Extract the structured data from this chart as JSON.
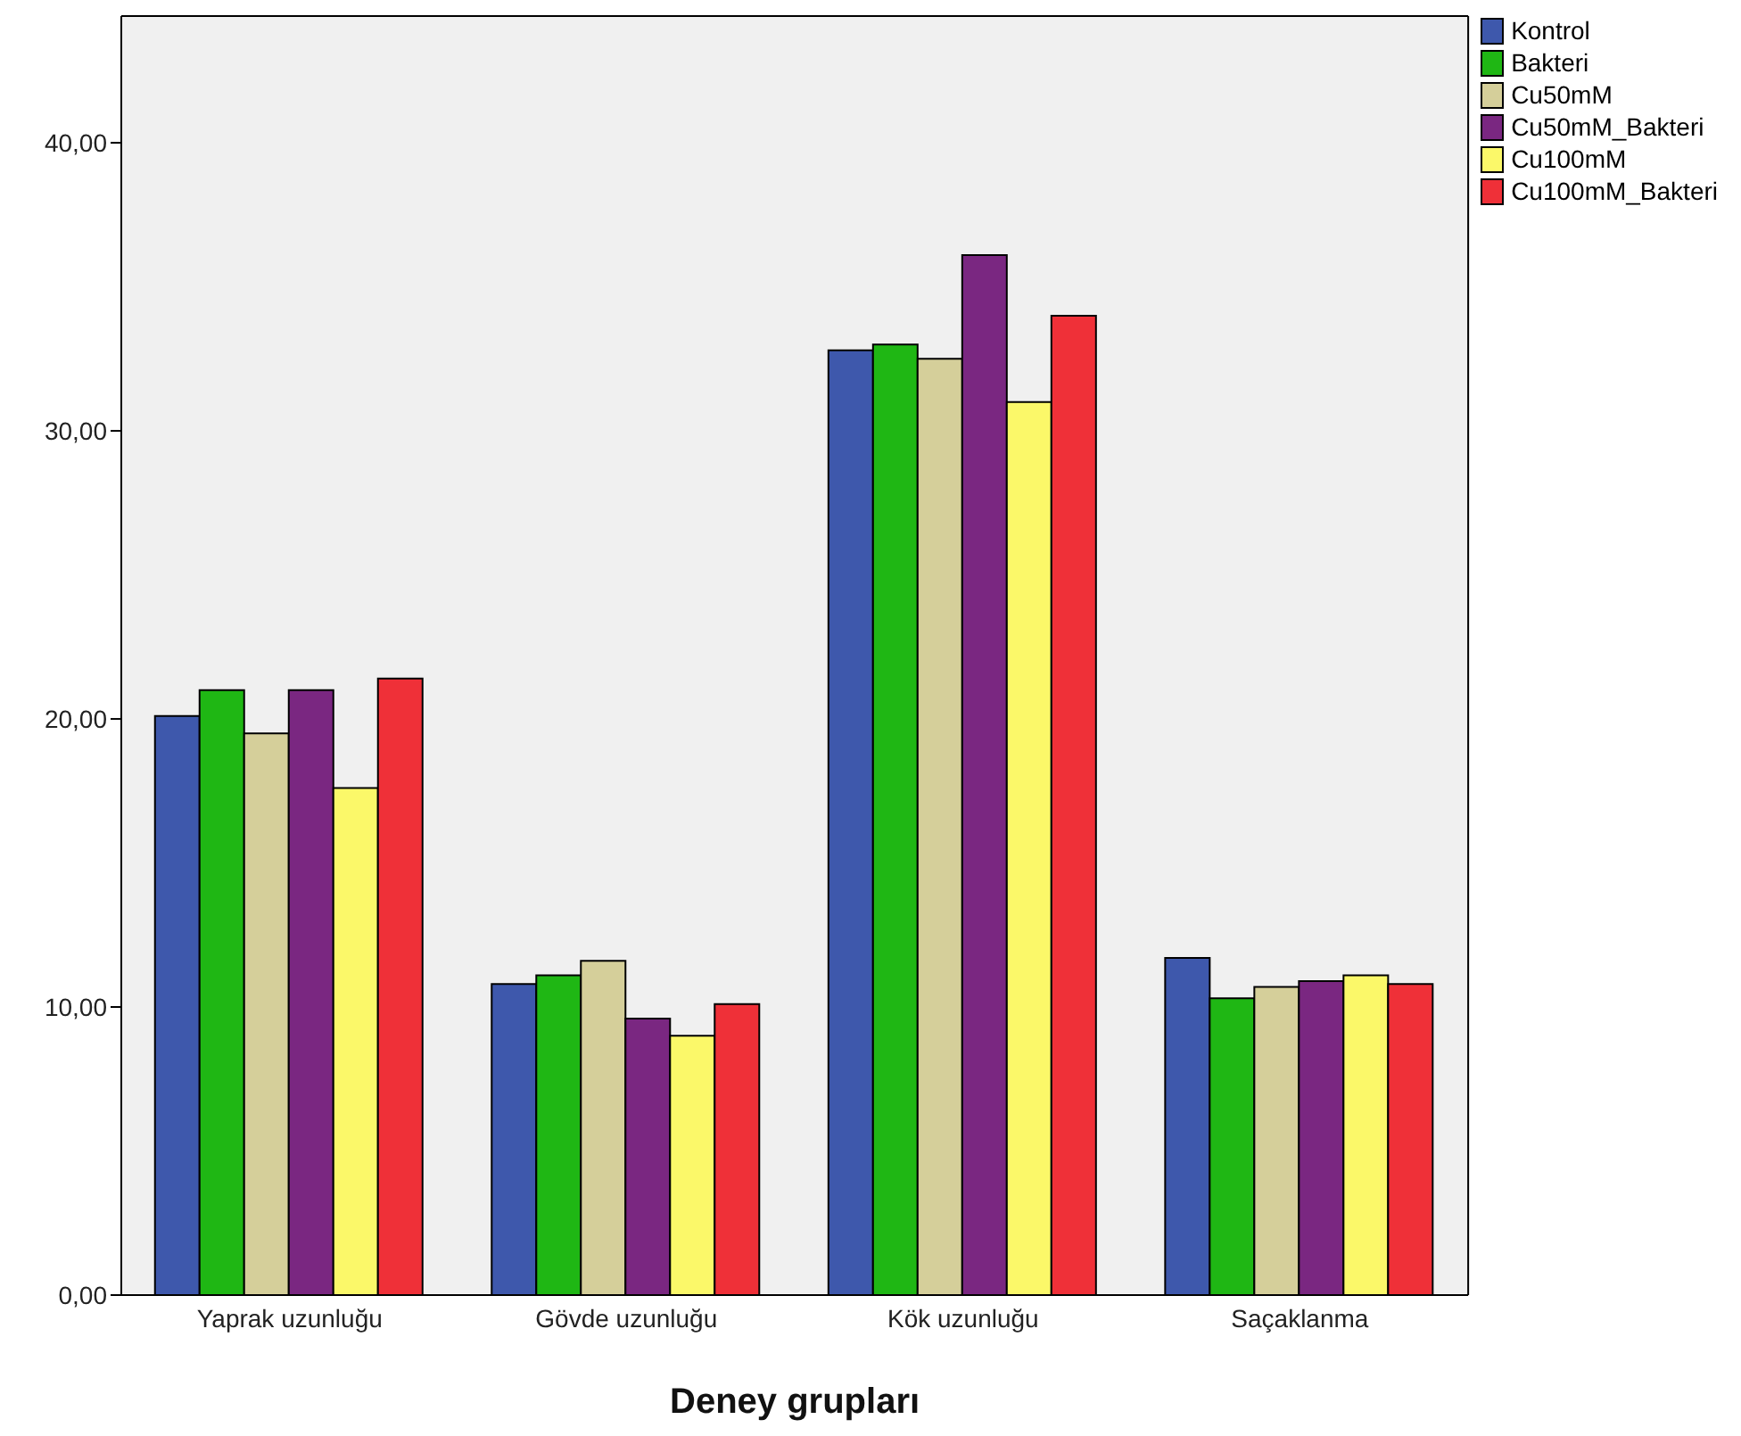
{
  "chart_data": {
    "type": "bar",
    "xlabel": "Deney grupları",
    "categories": [
      "Yaprak uzunluğu",
      "Gövde uzunluğu",
      "Kök uzunluğu",
      "Saçaklanma"
    ],
    "series": [
      {
        "name": "Kontrol",
        "color": "#3e58ac",
        "values": [
          20.1,
          10.8,
          32.8,
          11.7
        ]
      },
      {
        "name": "Bakteri",
        "color": "#1fb714",
        "values": [
          21.0,
          11.1,
          33.0,
          10.3
        ]
      },
      {
        "name": "Cu50mM",
        "color": "#d5cf9a",
        "values": [
          19.5,
          11.6,
          32.5,
          10.7
        ]
      },
      {
        "name": "Cu50mM_Bakteri",
        "color": "#7a2781",
        "values": [
          21.0,
          9.6,
          36.1,
          10.9
        ]
      },
      {
        "name": "Cu100mM",
        "color": "#fbf869",
        "values": [
          17.6,
          9.0,
          31.0,
          11.1
        ]
      },
      {
        "name": "Cu100mM_Bakteri",
        "color": "#ef3038",
        "values": [
          21.4,
          10.1,
          34.0,
          10.8
        ]
      }
    ],
    "ylim": [
      0,
      44.4
    ],
    "yticks": [
      {
        "value": 0,
        "label": "0,00"
      },
      {
        "value": 10,
        "label": "10,00"
      },
      {
        "value": 20,
        "label": "20,00"
      },
      {
        "value": 30,
        "label": "30,00"
      },
      {
        "value": 40,
        "label": "40,00"
      }
    ],
    "grid": false,
    "legend": "top right"
  }
}
